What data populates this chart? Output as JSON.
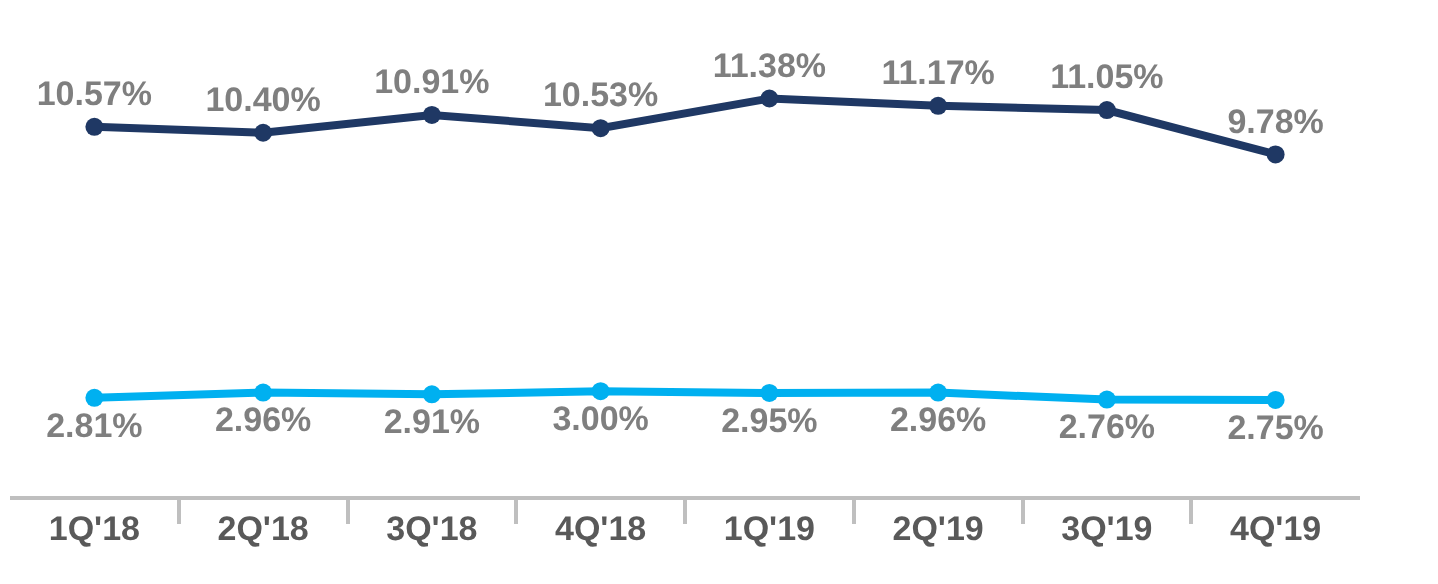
{
  "chart_data": {
    "type": "line",
    "categories": [
      "1Q'18",
      "2Q'18",
      "3Q'18",
      "4Q'18",
      "1Q'19",
      "2Q'19",
      "3Q'19",
      "4Q'19"
    ],
    "ylim": [
      0,
      14.2
    ],
    "marker": "circle",
    "line_style": "solid",
    "tick_labels": "x",
    "series": [
      {
        "color": "#1f3864",
        "values": [
          10.57,
          10.4,
          10.91,
          10.53,
          11.38,
          11.17,
          11.05,
          9.78
        ],
        "value_labels": [
          "10.57%",
          "10.40%",
          "10.91%",
          "10.53%",
          "11.38%",
          "11.17%",
          "11.05%",
          "9.78%"
        ]
      },
      {
        "color": "#00b0f0",
        "values": [
          2.81,
          2.96,
          2.91,
          3.0,
          2.95,
          2.96,
          2.76,
          2.75
        ],
        "value_labels": [
          "2.81%",
          "2.96%",
          "2.91%",
          "3.00%",
          "2.95%",
          "2.96%",
          "2.76%",
          "2.75%"
        ]
      }
    ]
  }
}
